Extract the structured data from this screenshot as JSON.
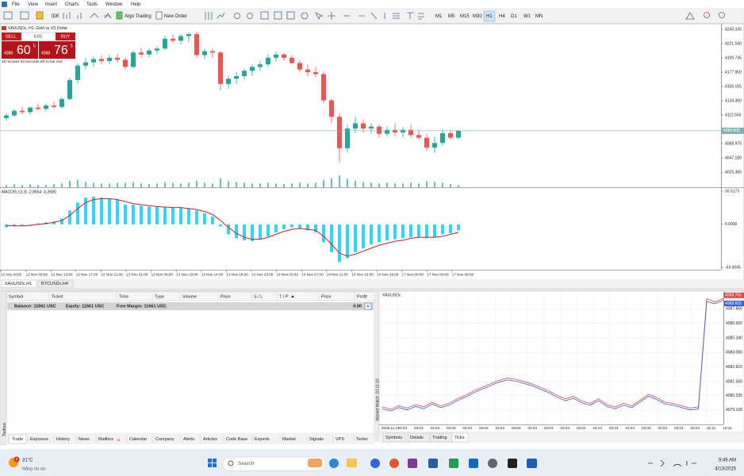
{
  "menu": [
    "File",
    "View",
    "Insert",
    "Charts",
    "Tools",
    "Window",
    "Help"
  ],
  "toolbar": {
    "ide": "IDE",
    "algo_trading": "Algo Trading",
    "new_order": "New Order",
    "timeframes": [
      "M1",
      "M5",
      "M15",
      "M30",
      "H1",
      "H4",
      "D1",
      "W1",
      "MN"
    ],
    "active_timeframe": "H1"
  },
  "chart": {
    "type": "candlestick",
    "title": "XAUUSDc, H1: Gold vs US Dollar",
    "trade_panel": {
      "sell": "SELL",
      "buy": "BUY",
      "lot": "0.01",
      "sell_price": {
        "prefix": "4088",
        "big": "60",
        "sup": "5"
      },
      "buy_price": {
        "prefix": "4088",
        "big": "76",
        "sup": "5"
      },
      "countdown": "40 minutes 53 seconds left to bar end"
    },
    "candles": [
      [
        4108,
        4116,
        4104,
        4112
      ],
      [
        4112,
        4122,
        4110,
        4119
      ],
      [
        4119,
        4125,
        4114,
        4117
      ],
      [
        4117,
        4126,
        4113,
        4124
      ],
      [
        4124,
        4130,
        4120,
        4122
      ],
      [
        4122,
        4130,
        4118,
        4127
      ],
      [
        4127,
        4133,
        4122,
        4125
      ],
      [
        4125,
        4140,
        4122,
        4137
      ],
      [
        4137,
        4170,
        4135,
        4166
      ],
      [
        4166,
        4192,
        4160,
        4188
      ],
      [
        4188,
        4200,
        4182,
        4193
      ],
      [
        4193,
        4202,
        4186,
        4198
      ],
      [
        4198,
        4204,
        4190,
        4195
      ],
      [
        4195,
        4205,
        4190,
        4200
      ],
      [
        4200,
        4206,
        4192,
        4197
      ],
      [
        4197,
        4200,
        4182,
        4186
      ],
      [
        4186,
        4212,
        4184,
        4208
      ],
      [
        4208,
        4215,
        4200,
        4205
      ],
      [
        4205,
        4214,
        4200,
        4211
      ],
      [
        4211,
        4218,
        4205,
        4214
      ],
      [
        4214,
        4234,
        4212,
        4229
      ],
      [
        4229,
        4236,
        4222,
        4226
      ],
      [
        4226,
        4236,
        4220,
        4233
      ],
      [
        4233,
        4238,
        4224,
        4236
      ],
      [
        4236,
        4240,
        4200,
        4204
      ],
      [
        4204,
        4214,
        4198,
        4210
      ],
      [
        4210,
        4214,
        4200,
        4208
      ],
      [
        4208,
        4210,
        4150,
        4160
      ],
      [
        4160,
        4172,
        4152,
        4168
      ],
      [
        4168,
        4178,
        4160,
        4172
      ],
      [
        4172,
        4184,
        4166,
        4180
      ],
      [
        4180,
        4190,
        4172,
        4186
      ],
      [
        4186,
        4196,
        4180,
        4190
      ],
      [
        4190,
        4205,
        4186,
        4200
      ],
      [
        4200,
        4210,
        4194,
        4205
      ],
      [
        4205,
        4207,
        4195,
        4200
      ],
      [
        4200,
        4204,
        4190,
        4192
      ],
      [
        4192,
        4196,
        4178,
        4182
      ],
      [
        4182,
        4190,
        4172,
        4178
      ],
      [
        4178,
        4186,
        4170,
        4175
      ],
      [
        4175,
        4180,
        4130,
        4135
      ],
      [
        4135,
        4138,
        4100,
        4110
      ],
      [
        4110,
        4115,
        4040,
        4062
      ],
      [
        4062,
        4098,
        4055,
        4092
      ],
      [
        4092,
        4110,
        4085,
        4100
      ],
      [
        4100,
        4106,
        4086,
        4092
      ],
      [
        4092,
        4100,
        4084,
        4095
      ],
      [
        4095,
        4098,
        4078,
        4084
      ],
      [
        4084,
        4096,
        4080,
        4090
      ],
      [
        4090,
        4100,
        4080,
        4086
      ],
      [
        4086,
        4094,
        4078,
        4090
      ],
      [
        4090,
        4098,
        4078,
        4082
      ],
      [
        4082,
        4090,
        4075,
        4078
      ],
      [
        4078,
        4084,
        4058,
        4063
      ],
      [
        4063,
        4080,
        4055,
        4070
      ],
      [
        4070,
        4090,
        4066,
        4085
      ],
      [
        4085,
        4090,
        4075,
        4078
      ],
      [
        4078,
        4090,
        4076,
        4088.6
      ]
    ],
    "volumes": [
      3,
      4,
      3,
      4,
      3,
      3,
      4,
      5,
      9,
      10,
      7,
      6,
      5,
      5,
      6,
      6,
      7,
      5,
      4,
      5,
      7,
      6,
      5,
      6,
      9,
      6,
      5,
      12,
      8,
      7,
      6,
      5,
      5,
      6,
      5,
      4,
      5,
      6,
      5,
      6,
      10,
      12,
      16,
      11,
      9,
      7,
      6,
      5,
      6,
      5,
      5,
      6,
      5,
      8,
      7,
      6,
      4,
      3
    ],
    "ylim": [
      4002.5,
      4251.8
    ],
    "yticks": [
      4243.335,
      {
        "value": 4221.54,
        "label": "4221.540"
      },
      4199.745,
      {
        "value": 4177.95,
        "label": "4177.950"
      },
      4156.155,
      {
        "value": 4134.36,
        "label": "4134.360"
      },
      4112.565,
      4068.975,
      {
        "value": 4047.18,
        "label": "4047.180"
      },
      4025.385
    ],
    "current_price": {
      "value": 4088.6,
      "label": "4088.600"
    },
    "up_color": "#26a69a",
    "down_color": "#ef5350",
    "volume_color": "#26a69a",
    "current_color": "#7fb3b3",
    "macd": {
      "title": "MACD(5,13,3) -2.8654 -5.2685",
      "histogram": [
        -3,
        -2,
        -1,
        0,
        1,
        2,
        3,
        6,
        14,
        22,
        27,
        28,
        27,
        26,
        25,
        20,
        20,
        19,
        18,
        18,
        17,
        17,
        17,
        16,
        14,
        11,
        8,
        -2,
        -10,
        -14,
        -16,
        -17,
        -15,
        -12,
        -8,
        -5,
        -3,
        -4,
        -6,
        -8,
        -18,
        -28,
        -38,
        -34,
        -28,
        -24,
        -20,
        -18,
        -16,
        -15,
        -14,
        -13,
        -13,
        -14,
        -13,
        -10,
        -9,
        -6
      ],
      "signal": [
        -1,
        -1.5,
        -1.5,
        -1,
        0,
        1,
        2,
        4,
        9,
        16,
        22,
        25,
        26,
        26,
        25,
        23,
        21,
        20,
        19,
        18,
        17.5,
        17,
        17,
        16,
        15,
        13,
        10,
        4,
        -3,
        -9,
        -13,
        -15,
        -15,
        -13,
        -10,
        -7,
        -5,
        -4,
        -5,
        -6,
        -12,
        -20,
        -29,
        -32,
        -30,
        -27,
        -24,
        -21,
        -19,
        -17,
        -16,
        -14,
        -13,
        -13,
        -13,
        -12,
        -10,
        -8
      ],
      "ylim": [
        -45.7,
        36.7
      ],
      "yticks": [
        33.5173,
        {
          "value": 0,
          "label": "0.0000"
        },
        -43.3045
      ],
      "histogram_color": "#33d6f0",
      "signal_color": "#d81e1e"
    },
    "x_labels": [
      "12 Nov 2025",
      "12 Nov 09:00",
      "12 Nov 13:00",
      "12 Nov 17:00",
      "12 Nov 21:00",
      "13 Nov 02:00",
      "13 Nov 06:00",
      "13 Nov 10:00",
      "13 Nov 14:00",
      "13 Nov 18:00",
      "13 Nov 23:00",
      "14 Nov 03:00",
      "14 Nov 07:00",
      "14 Nov 11:00",
      "14 Nov 15:00",
      "14 Nov 19:00",
      "17 Nov 00:00",
      "17 Nov 04:00",
      "17 Nov 08:00"
    ]
  },
  "chart_tabs": [
    "XAUUSDc,H1",
    "BTCUSDc,H4"
  ],
  "terminal": {
    "columns": [
      "Symbol",
      "Ticket",
      "Time",
      "Type",
      "Volume",
      "Price",
      "S / L",
      "T / P",
      "Price",
      "Profit"
    ],
    "balance": "Balance: 11661 USC",
    "equity": "Equity: 11661 USC",
    "free_margin": "Free Margin: 11661 USC",
    "profit": "0.00",
    "tabs": [
      "Trade",
      "Exposure",
      "History",
      "News",
      "Mailbox",
      "Calendar",
      "Company",
      "Alerts",
      "Articles",
      "Code Base",
      "Experts",
      "Market",
      "Signals",
      "VPS",
      "Tester"
    ],
    "mailbox_count": "11",
    "side_label": "Toolbox"
  },
  "ticks": {
    "type": "line",
    "symbol": "XAUUSDc",
    "bid": [
      4079.2,
      4079.0,
      4079.3,
      4079.1,
      4079.4,
      4079.2,
      4079.6,
      4079.3,
      4079.5,
      4079.9,
      4080.2,
      4080.6,
      4080.9,
      4081.2,
      4081.5,
      4081.7,
      4081.6,
      4081.4,
      4081.2,
      4080.9,
      4080.6,
      4080.2,
      4079.9,
      4080.1,
      4079.7,
      4079.5,
      4079.9,
      4079.4,
      4079.2,
      4079.5,
      4079.3,
      4079.8,
      4080.3,
      4080.0,
      4079.6,
      4079.5,
      4079.3,
      4079.1,
      4079.2,
      4088.5,
      4088.3,
      4088.6
    ],
    "ask": [
      4079.36,
      4079.16,
      4079.46,
      4079.26,
      4079.56,
      4079.36,
      4079.76,
      4079.46,
      4079.66,
      4080.06,
      4080.36,
      4080.76,
      4081.06,
      4081.36,
      4081.66,
      4081.86,
      4081.76,
      4081.56,
      4081.36,
      4081.06,
      4080.76,
      4080.36,
      4080.06,
      4080.26,
      4079.86,
      4079.66,
      4080.06,
      4079.56,
      4079.36,
      4079.66,
      4079.46,
      4079.96,
      4080.46,
      4080.16,
      4079.76,
      4079.66,
      4079.46,
      4079.26,
      4079.36,
      4088.76,
      4088.46,
      4088.76
    ],
    "bid_color": "#3b5fd6",
    "ask_color": "#e04848",
    "ylim": [
      4077.84,
      4089.33
    ],
    "yticks": [
      {
        "value": 4087.86,
        "label": "4087.860"
      },
      {
        "value": 4086.6,
        "label": "4086.600"
      },
      {
        "value": 4085.34,
        "label": "4085.340"
      },
      {
        "value": 4084.08,
        "label": "4084.080"
      },
      {
        "value": 4082.82,
        "label": "4082.820"
      },
      {
        "value": 4081.56,
        "label": "4081.560"
      },
      4080.335,
      {
        "value": 4079.1,
        "label": "4079.100"
      }
    ],
    "ask_label": {
      "value": 4088.765,
      "label": "4088.765"
    },
    "bid_label": {
      "value": 4088.605,
      "label": "4088.605"
    },
    "x_labels": [
      "2025.11.17",
      "03:03",
      "03:03",
      "03:03",
      "03:03",
      "03:03",
      "03:03",
      "03:03",
      "03:03",
      "03:03",
      "03:03",
      "03:04",
      "03:04",
      "03:04",
      "03:04",
      "03:04",
      "03:04",
      "03:04",
      "03:04",
      "03:04",
      "10:11",
      "10:11"
    ],
    "side_label": "Market Watch: 10:11:10",
    "tabs": [
      "Symbols",
      "Details",
      "Trading",
      "Ticks"
    ],
    "active_tab": "Ticks"
  },
  "taskbar": {
    "temperature": "31°C",
    "weather": "Nắng rải rác",
    "search": "Search",
    "time": "9:46 AM",
    "date": "4/13/2025",
    "badge": "2"
  }
}
